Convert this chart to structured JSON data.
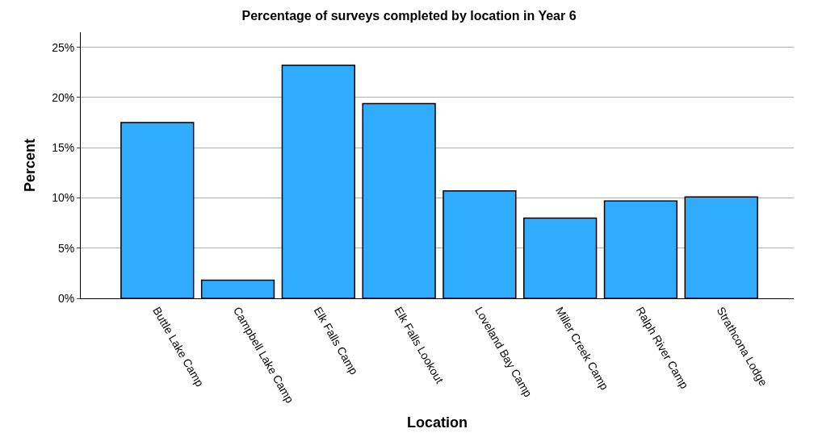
{
  "chart_data": {
    "type": "bar",
    "title": "Percentage of surveys completed by location in Year 6",
    "xlabel": "Location",
    "ylabel": "Percent",
    "categories": [
      "Buttle Lake Camp",
      "Campbell Lake Camp",
      "Elk Falls Camp",
      "Elk Falls Lookout",
      "Loveland Bay Camp",
      "Miller Creek Camp",
      "Ralph River Camp",
      "Strathcona Lodge"
    ],
    "values": [
      17.5,
      1.8,
      23.2,
      19.4,
      10.7,
      8.0,
      9.7,
      10.1
    ],
    "color": "#30acfe",
    "ylim": [
      0,
      26.5
    ],
    "yticks": [
      {
        "value": 0,
        "label": "0%"
      },
      {
        "value": 5,
        "label": "5%"
      },
      {
        "value": 10,
        "label": "10%"
      },
      {
        "value": 15,
        "label": "15%"
      },
      {
        "value": 20,
        "label": "20%"
      },
      {
        "value": 25,
        "label": "25%"
      }
    ],
    "grid": "y",
    "legend": false
  }
}
